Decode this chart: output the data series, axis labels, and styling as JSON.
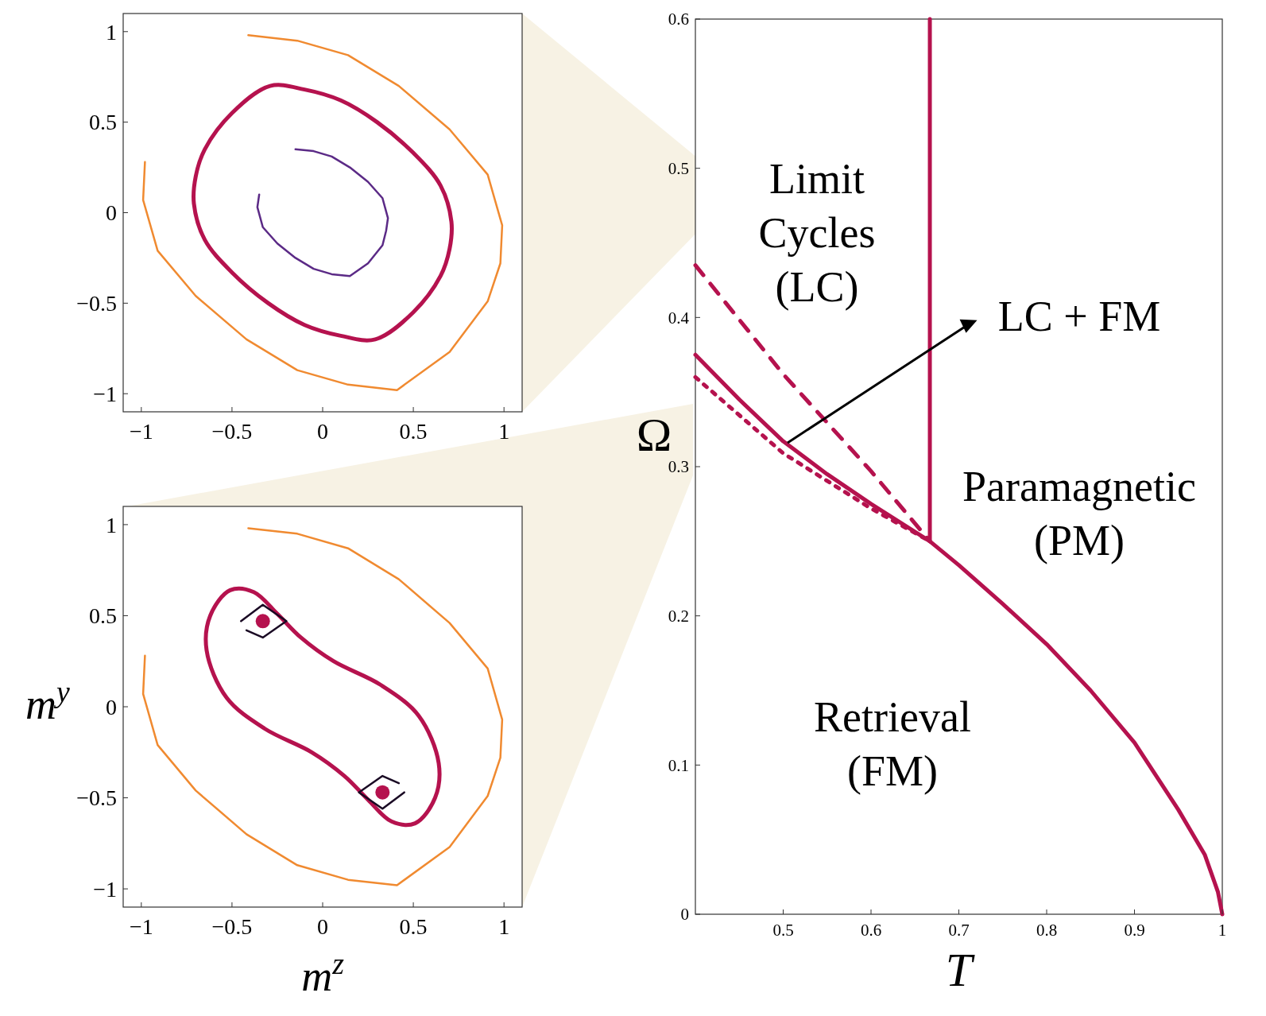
{
  "chart_data": [
    {
      "type": "line",
      "xlim": [
        -1.1,
        1.1
      ],
      "ylim": [
        -1.1,
        1.1
      ],
      "xticks": [
        -1,
        -0.5,
        0,
        0.5,
        1
      ],
      "yticks": [
        -1,
        -0.5,
        0,
        0.5,
        1
      ],
      "series": [
        {
          "color": "#5b2a86",
          "x": [
            -0.15,
            -0.05,
            0.05,
            0.15,
            0.25,
            0.33,
            0.36,
            0.35,
            0.33,
            0.25,
            0.15,
            0.05,
            -0.05,
            -0.15,
            -0.25,
            -0.33,
            -0.36,
            -0.35
          ],
          "values": [
            0.35,
            0.34,
            0.31,
            0.25,
            0.17,
            0.08,
            -0.03,
            -0.1,
            -0.18,
            -0.28,
            -0.35,
            -0.34,
            -0.31,
            -0.25,
            -0.17,
            -0.08,
            0.03,
            0.1
          ]
        },
        {
          "color": "#f08a30",
          "x": [
            -0.41,
            -0.14,
            0.14,
            0.42,
            0.7,
            0.91,
            0.99,
            0.98,
            0.91,
            0.7,
            0.41,
            0.14,
            -0.14,
            -0.42,
            -0.7,
            -0.91,
            -0.99,
            -0.98
          ],
          "values": [
            0.98,
            0.95,
            0.87,
            0.7,
            0.46,
            0.21,
            -0.07,
            -0.28,
            -0.49,
            -0.77,
            -0.98,
            -0.95,
            -0.87,
            -0.7,
            -0.46,
            -0.21,
            0.07,
            0.28
          ]
        }
      ]
    },
    {
      "type": "line",
      "xlabel": "m$^{z}$",
      "ylabel": "m$^{y}$",
      "xlim": [
        -1.1,
        1.1
      ],
      "ylim": [
        -1.1,
        1.1
      ],
      "xticks": [
        -1,
        -0.5,
        0,
        0.5,
        1
      ],
      "yticks": [
        -1,
        -0.5,
        0,
        0.5,
        1
      ],
      "series": [
        {
          "color": "#1a0a24",
          "x": [
            -0.45,
            -0.33,
            -0.2,
            -0.33,
            -0.42
          ],
          "values": [
            0.47,
            0.56,
            0.47,
            0.38,
            0.42
          ]
        },
        {
          "color": "#1a0a24",
          "x": [
            0.45,
            0.33,
            0.2,
            0.33,
            0.42
          ],
          "values": [
            -0.47,
            -0.56,
            -0.47,
            -0.38,
            -0.42
          ]
        },
        {
          "color": "#f08a30",
          "x": [
            -0.41,
            -0.14,
            0.14,
            0.42,
            0.7,
            0.91,
            0.99,
            0.98,
            0.91,
            0.7,
            0.41,
            0.14,
            -0.14,
            -0.42,
            -0.7,
            -0.91,
            -0.99,
            -0.98
          ],
          "values": [
            0.98,
            0.95,
            0.87,
            0.7,
            0.46,
            0.21,
            -0.07,
            -0.28,
            -0.49,
            -0.77,
            -0.98,
            -0.95,
            -0.87,
            -0.7,
            -0.46,
            -0.21,
            0.07,
            0.28
          ]
        },
        {
          "type": "scatter",
          "color": "#b5124e",
          "marker": "circle",
          "x": [
            -0.33,
            0.33
          ],
          "values": [
            0.47,
            -0.47
          ]
        }
      ]
    },
    {
      "type": "line",
      "xlabel": "T",
      "ylabel": "Ω",
      "xlim": [
        0.4,
        1
      ],
      "ylim": [
        0,
        0.6
      ],
      "xticks": [
        0.5,
        0.6,
        0.7,
        0.8,
        0.9,
        1
      ],
      "yticks": [
        0,
        0.1,
        0.2,
        0.3,
        0.4,
        0.5,
        0.6
      ],
      "series": [
        {
          "color": "#b5124e",
          "x": [
            0.4,
            0.45,
            0.5,
            0.55,
            0.6,
            0.667,
            0.7,
            0.75,
            0.8,
            0.85,
            0.9,
            0.95,
            0.98,
            0.995,
            1
          ],
          "values": [
            0.375,
            0.345,
            0.317,
            0.295,
            0.275,
            0.25,
            0.234,
            0.208,
            0.181,
            0.15,
            0.115,
            0.07,
            0.04,
            0.015,
            0
          ]
        },
        {
          "color": "#b5124e",
          "line_style": "dashed",
          "x": [
            0.4,
            0.5,
            0.6,
            0.667
          ],
          "values": [
            0.435,
            0.362,
            0.297,
            0.25
          ]
        },
        {
          "color": "#b5124e",
          "line_style": "dotted",
          "x": [
            0.4,
            0.5,
            0.6,
            0.667
          ],
          "values": [
            0.36,
            0.309,
            0.272,
            0.25
          ]
        },
        {
          "color": "#b5124e",
          "x": [
            0.667,
            0.667
          ],
          "values": [
            0.25,
            0.6
          ]
        }
      ],
      "annotations": [
        "Limit\nCycles\n(LC)",
        "LC + FM",
        "Paramagnetic\n(PM)",
        "Retrieval\n(FM)"
      ]
    }
  ]
}
